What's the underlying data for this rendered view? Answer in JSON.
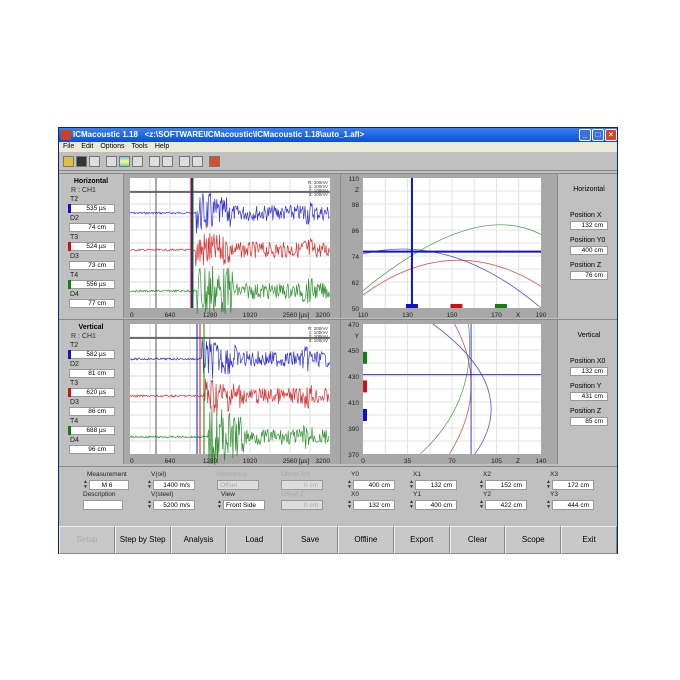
{
  "window": {
    "app": "ICMacoustic 1.18",
    "path": "<z:\\SOFTWARE\\ICMacoustic\\ICMacoustic 1.18\\auto_1.afl>"
  },
  "menu": [
    "File",
    "Edit",
    "Options",
    "Tools",
    "Help"
  ],
  "toolbar_icons": [
    "open-icon",
    "save-icon",
    "new-icon",
    "config-icon",
    "color-bars-icon",
    "gray-icon",
    "undo-icon",
    "redo-icon",
    "arc-up-icon",
    "arc-down-icon",
    "grid-color-icon"
  ],
  "colors": {
    "ch2": "#1010d0",
    "ch3": "#d01010",
    "ch4": "#108010"
  },
  "horizontal": {
    "title": "Horizontal",
    "ref": "R :   CH1",
    "fields": [
      {
        "label": "T2",
        "value": "535 µs",
        "color": "#1010d0"
      },
      {
        "label": "D2",
        "value": "74 cm"
      },
      {
        "label": "T3",
        "value": "524 µs",
        "color": "#d01010"
      },
      {
        "label": "D3",
        "value": "73 cm"
      },
      {
        "label": "T4",
        "value": "556 µs",
        "color": "#108010"
      },
      {
        "label": "D4",
        "value": "77 cm"
      }
    ],
    "scope": {
      "xticks": [
        "0",
        "640",
        "1280",
        "1920",
        "2560",
        "3200"
      ],
      "unit": "[µs]",
      "legend": [
        "R: 200mV",
        "1: 100mV",
        "2: 100mV",
        "3: 100mV"
      ]
    },
    "plot": {
      "xlabel": "X",
      "ylabel": "Z",
      "xticks": [
        "110",
        "130",
        "150",
        "170",
        "190"
      ],
      "yticks": [
        "110",
        "98",
        "86",
        "74",
        "62",
        "50"
      ],
      "xlim": [
        110,
        190
      ],
      "ylim": [
        50,
        110
      ],
      "solution": {
        "x": 132,
        "z": 76
      },
      "sensors": [
        132,
        152,
        172
      ]
    },
    "panel": {
      "title": "Horizontal",
      "items": [
        {
          "label": "Position X",
          "value": "132 cm"
        },
        {
          "label": "Position Y0",
          "value": "400 cm"
        },
        {
          "label": "Position Z",
          "value": "76 cm"
        }
      ]
    }
  },
  "vertical": {
    "title": "Vertical",
    "ref": "R :   CH1",
    "fields": [
      {
        "label": "T2",
        "value": "582 µs",
        "color": "#1010d0"
      },
      {
        "label": "D2",
        "value": "81 cm"
      },
      {
        "label": "T3",
        "value": "620 µs",
        "color": "#d01010"
      },
      {
        "label": "D3",
        "value": "86 cm"
      },
      {
        "label": "T4",
        "value": "688 µs",
        "color": "#108010"
      },
      {
        "label": "D4",
        "value": "96 cm"
      }
    ],
    "scope": {
      "xticks": [
        "0",
        "640",
        "1280",
        "1920",
        "2560",
        "3200"
      ],
      "unit": "[µs]",
      "legend": [
        "R: 200mV",
        "1: 100mV",
        "2: 100mV",
        "3: 100mV"
      ]
    },
    "plot": {
      "xlabel": "Z",
      "ylabel": "Y",
      "xticks": [
        "0",
        "35",
        "70",
        "105",
        "140"
      ],
      "yticks": [
        "470",
        "450",
        "430",
        "410",
        "390",
        "370"
      ],
      "xlim": [
        0,
        140
      ],
      "ylim": [
        370,
        470
      ],
      "solution": {
        "z": 85,
        "y": 431
      },
      "sensors": [
        400,
        422,
        444
      ]
    },
    "panel": {
      "title": "Vertical",
      "items": [
        {
          "label": "Position X0",
          "value": "132 cm"
        },
        {
          "label": "Position Y",
          "value": "431 cm"
        },
        {
          "label": "Position Z",
          "value": "85 cm"
        }
      ]
    }
  },
  "params": [
    {
      "label": "Measurement",
      "value": "M 6",
      "spin": true
    },
    {
      "label": "V(oil)",
      "value": "1400 m/s",
      "spin": true
    },
    {
      "label": "Reference",
      "value": "Offset",
      "disabled": true
    },
    {
      "label": "Offset X/Y",
      "value": "0 cm",
      "disabled": true
    },
    {
      "label": "Y0",
      "value": "400 cm",
      "spin": true
    },
    {
      "label": "X1",
      "value": "132 cm",
      "spin": true
    },
    {
      "label": "X2",
      "value": "152 cm",
      "spin": true
    },
    {
      "label": "X3",
      "value": "172 cm",
      "spin": true
    },
    {
      "label": "Description",
      "value": ""
    },
    {
      "label": "V(steel)",
      "value": "5200 m/s",
      "spin": true
    },
    {
      "label": "View",
      "value": "Front Side",
      "spin": true
    },
    {
      "label": "Offset Z",
      "value": "0 cm",
      "disabled": true
    },
    {
      "label": "X0",
      "value": "132 cm",
      "spin": true
    },
    {
      "label": "Y1",
      "value": "400 cm",
      "spin": true
    },
    {
      "label": "Y2",
      "value": "422 cm",
      "spin": true
    },
    {
      "label": "Y3",
      "value": "444 cm",
      "spin": true
    }
  ],
  "buttons": [
    {
      "label": "Setup",
      "disabled": true
    },
    {
      "label": "Step by Step"
    },
    {
      "label": "Analysis"
    },
    {
      "label": "Load"
    },
    {
      "label": "Save"
    },
    {
      "label": "Offline"
    },
    {
      "label": "Export"
    },
    {
      "label": "Clear"
    },
    {
      "label": "Scope"
    },
    {
      "label": "Exit"
    }
  ]
}
